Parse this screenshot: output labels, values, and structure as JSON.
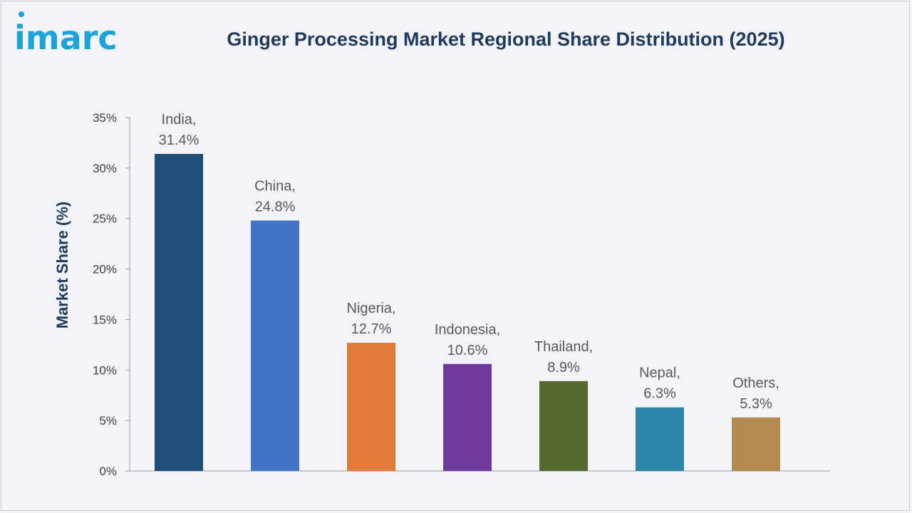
{
  "logo": {
    "text": "imarc"
  },
  "chart_data": {
    "type": "bar",
    "title": "Ginger Processing Market Regional Share Distribution (2025)",
    "xlabel": "",
    "ylabel": "Market Share (%)",
    "ylim": [
      0,
      35
    ],
    "ytick_step": 5,
    "ytick_labels": [
      "0%",
      "5%",
      "10%",
      "15%",
      "20%",
      "25%",
      "30%",
      "35%"
    ],
    "categories": [
      "India",
      "China",
      "Nigeria",
      "Indonesia",
      "Thailand",
      "Nepal",
      "Others"
    ],
    "values": [
      31.4,
      24.8,
      12.7,
      10.6,
      8.9,
      6.3,
      5.3
    ],
    "data_labels": [
      [
        "India,",
        "31.4%"
      ],
      [
        "China,",
        "24.8%"
      ],
      [
        "Nigeria,",
        "12.7%"
      ],
      [
        "Indonesia,",
        "10.6%"
      ],
      [
        "Thailand,",
        "8.9%"
      ],
      [
        "Nepal,",
        "6.3%"
      ],
      [
        "Others,",
        "5.3%"
      ]
    ],
    "colors": [
      "#1f4e79",
      "#4472c4",
      "#e07b39",
      "#6f3c9e",
      "#55692c",
      "#2e86ab",
      "#b38b50"
    ],
    "grid": false,
    "legend": "none"
  }
}
